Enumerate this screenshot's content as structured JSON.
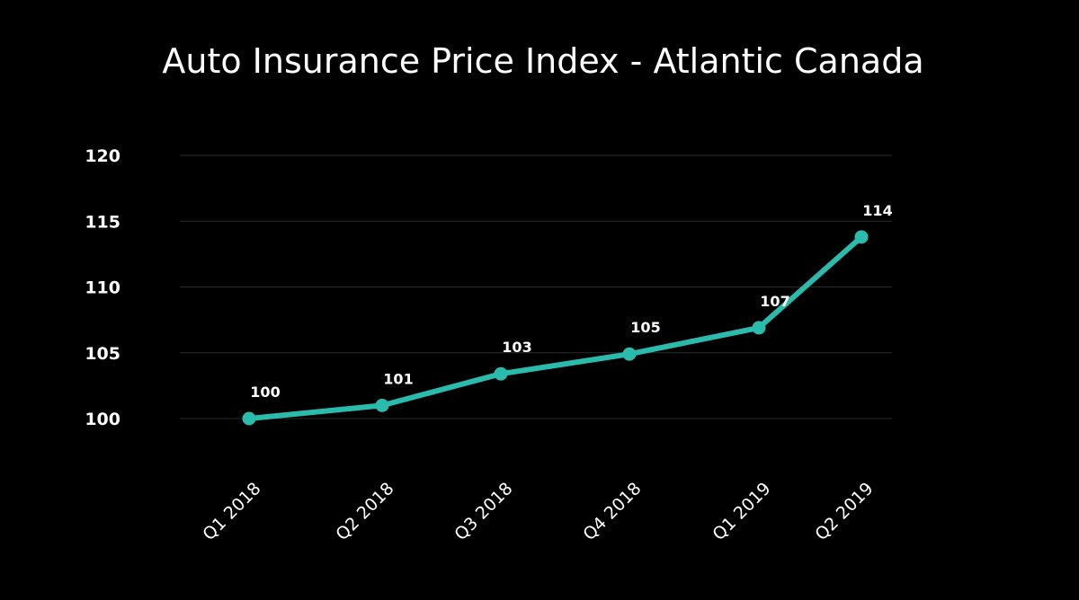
{
  "chart_data": {
    "type": "line",
    "title": "Auto Insurance Price Index - Atlantic Canada",
    "xlabel": "",
    "ylabel": "",
    "categories": [
      "Q1 2018",
      "Q2 2018",
      "Q3 2018",
      "Q4 2018",
      "Q1 2019",
      "Q2 2019"
    ],
    "series": [
      {
        "values": [
          100,
          101,
          103.4,
          104.9,
          106.9,
          113.8
        ],
        "labels": [
          "100",
          "101",
          "103",
          "105",
          "107",
          "114"
        ]
      }
    ],
    "y_ticks": [
      "100",
      "105",
      "110",
      "115",
      "120"
    ],
    "ylim": [
      100,
      120
    ],
    "grid": true,
    "legend": "none",
    "colors": {
      "background": "#000000",
      "line": "#2bbbad",
      "text": "#ffffff",
      "grid": "#2a2a2a"
    }
  }
}
